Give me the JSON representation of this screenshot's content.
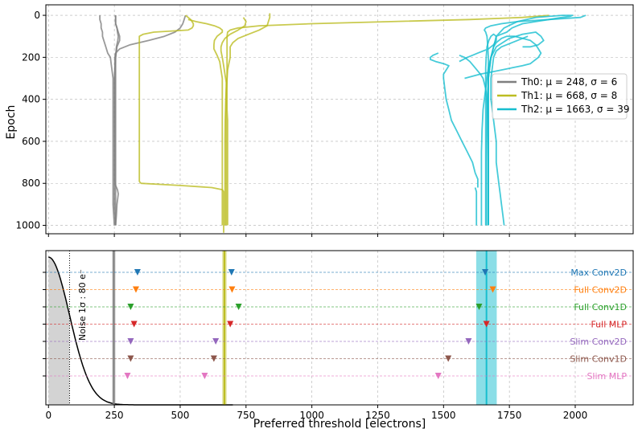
{
  "chart_data": [
    {
      "type": "line",
      "panel": "top",
      "xlabel": "",
      "ylabel": "Epoch",
      "xlim": [
        -10,
        2220
      ],
      "ylim": [
        1040,
        -50
      ],
      "x_ticks": [
        0,
        250,
        500,
        750,
        1000,
        1250,
        1500,
        1750,
        2000
      ],
      "y_ticks": [
        0,
        200,
        400,
        600,
        800,
        1000
      ],
      "y_tick_labels": [
        "0",
        "200",
        "400",
        "600",
        "800",
        "1000"
      ],
      "grid": true,
      "legend_position": "right",
      "legend": [
        {
          "label": "Th0: μ = 248, σ = 6",
          "color": "#7f7f7f"
        },
        {
          "label": "Th1: μ = 668, σ = 8",
          "color": "#bcbd22"
        },
        {
          "label": "Th2: μ = 1663, σ = 39",
          "color": "#17becf"
        }
      ],
      "series": [
        {
          "name": "Th0 run A",
          "group": "Th0",
          "x": [
            195,
            195,
            200,
            200,
            205,
            205,
            210,
            215,
            220,
            225,
            235,
            240,
            245,
            245,
            245,
            245,
            245,
            245,
            245,
            250
          ],
          "y": [
            0,
            20,
            40,
            60,
            80,
            100,
            120,
            140,
            160,
            180,
            200,
            250,
            300,
            400,
            500,
            600,
            700,
            800,
            900,
            1000
          ]
        },
        {
          "name": "Th0 run B",
          "group": "Th0",
          "x": [
            255,
            255,
            255,
            260,
            265,
            270,
            270,
            260,
            255,
            250,
            250,
            250,
            250,
            250,
            250,
            250,
            255
          ],
          "y": [
            0,
            20,
            40,
            60,
            80,
            100,
            120,
            150,
            200,
            300,
            400,
            500,
            600,
            700,
            800,
            900,
            1000
          ]
        },
        {
          "name": "Th0 run C",
          "group": "Th0",
          "x": [
            255,
            255,
            255,
            260,
            262,
            265,
            263,
            258,
            255,
            255,
            255,
            255,
            255,
            255,
            255,
            255,
            255
          ],
          "y": [
            0,
            20,
            40,
            60,
            80,
            100,
            120,
            150,
            200,
            300,
            400,
            500,
            600,
            700,
            800,
            900,
            1000
          ]
        },
        {
          "name": "Th0 run D",
          "group": "Th0",
          "x": [
            520,
            515,
            510,
            500,
            480,
            440,
            380,
            310,
            270,
            255,
            252,
            252,
            252,
            252,
            252,
            252,
            252,
            252,
            252,
            255,
            262,
            265,
            260,
            258,
            255
          ],
          "y": [
            0,
            20,
            40,
            60,
            80,
            100,
            120,
            140,
            160,
            180,
            200,
            250,
            300,
            400,
            500,
            600,
            700,
            750,
            790,
            810,
            830,
            850,
            900,
            950,
            1000
          ]
        },
        {
          "name": "Th1 run A",
          "group": "Th1",
          "x": [
            520,
            530,
            540,
            545,
            550,
            550,
            545,
            530,
            400,
            360,
            345,
            345,
            345,
            345,
            345,
            345,
            345,
            345,
            345,
            345,
            345,
            345,
            345,
            345,
            345,
            350
          ],
          "y": [
            0,
            10,
            20,
            30,
            40,
            50,
            60,
            70,
            80,
            90,
            100,
            150,
            200,
            250,
            300,
            350,
            400,
            450,
            500,
            550,
            600,
            650,
            700,
            750,
            790,
            800
          ]
        },
        {
          "name": "Th1 run B",
          "group": "Th1",
          "x": [
            350,
            500,
            620,
            660,
            665,
            665,
            665,
            665,
            665,
            665,
            665,
            665,
            665,
            665,
            665,
            665
          ],
          "y": [
            800,
            810,
            820,
            830,
            840,
            860,
            880,
            900,
            920,
            940,
            960,
            980,
            1000,
            1020,
            1030,
            1035
          ]
        },
        {
          "name": "Th1 run C",
          "group": "Th1",
          "x": [
            840,
            840,
            835,
            830,
            800,
            760,
            720,
            700,
            690,
            690,
            690,
            685,
            680,
            678,
            675,
            673,
            672,
            671,
            670,
            670,
            670,
            670,
            670,
            670,
            670
          ],
          "y": [
            -10,
            10,
            30,
            50,
            70,
            90,
            110,
            130,
            150,
            175,
            200,
            230,
            260,
            300,
            350,
            400,
            450,
            500,
            600,
            700,
            800,
            850,
            900,
            950,
            1000
          ]
        },
        {
          "name": "Th1 run D",
          "group": "Th1",
          "x": [
            530,
            560,
            600,
            630,
            650,
            660,
            660,
            650,
            640,
            630,
            628,
            628,
            640,
            650,
            655,
            660,
            660,
            660,
            660,
            660,
            660,
            660,
            660,
            660,
            660
          ],
          "y": [
            20,
            30,
            40,
            50,
            60,
            70,
            80,
            90,
            100,
            120,
            140,
            160,
            190,
            220,
            260,
            300,
            350,
            400,
            500,
            600,
            700,
            800,
            900,
            950,
            1000
          ]
        },
        {
          "name": "Th1 run E",
          "group": "Th1",
          "x": [
            740,
            750,
            745,
            720,
            690,
            670,
            660,
            655,
            655,
            660,
            665,
            670,
            675,
            675,
            675,
            675,
            675,
            675,
            675,
            675,
            675,
            675,
            675,
            675,
            675
          ],
          "y": [
            10,
            30,
            50,
            70,
            90,
            110,
            130,
            150,
            170,
            200,
            240,
            280,
            320,
            360,
            400,
            450,
            500,
            600,
            700,
            800,
            850,
            900,
            950,
            980,
            1000
          ]
        },
        {
          "name": "Th1 run F",
          "group": "Th1",
          "x": [
            1900,
            1800,
            1600,
            1300,
            1000,
            800,
            720,
            690,
            680,
            678,
            678,
            678,
            678,
            678,
            678,
            678,
            678,
            680,
            680,
            680,
            680,
            680,
            680,
            680,
            680
          ],
          "y": [
            0,
            10,
            20,
            30,
            40,
            50,
            60,
            70,
            80,
            100,
            150,
            200,
            250,
            300,
            350,
            400,
            450,
            500,
            550,
            600,
            700,
            800,
            900,
            950,
            1000
          ]
        },
        {
          "name": "Th2 run A",
          "group": "Th2",
          "x": [
            1480,
            1460,
            1450,
            1450,
            1470,
            1500,
            1520,
            1510,
            1500,
            1500,
            1505,
            1510,
            1520,
            1530,
            1550,
            1570,
            1590,
            1610,
            1620,
            1630,
            1630,
            1630
          ],
          "y": [
            180,
            190,
            200,
            210,
            220,
            230,
            240,
            260,
            280,
            300,
            350,
            400,
            450,
            500,
            550,
            600,
            650,
            700,
            750,
            780,
            800,
            820
          ]
        },
        {
          "name": "Th2 run B",
          "group": "Th2",
          "x": [
            1620,
            1625,
            1625,
            1625,
            1625,
            1625,
            1625,
            1625,
            1625,
            1625
          ],
          "y": [
            820,
            840,
            860,
            880,
            900,
            920,
            940,
            960,
            980,
            1000
          ]
        },
        {
          "name": "Th2 run C",
          "group": "Th2",
          "x": [
            1800,
            1830,
            1860,
            1880,
            1870,
            1850,
            1800,
            1750,
            1700,
            1680,
            1670,
            1665,
            1660,
            1655,
            1650,
            1648,
            1646,
            1645,
            1644,
            1644,
            1644,
            1644,
            1644,
            1644,
            1644
          ],
          "y": [
            150,
            150,
            140,
            120,
            100,
            80,
            90,
            110,
            150,
            200,
            250,
            300,
            350,
            400,
            450,
            500,
            550,
            600,
            650,
            700,
            750,
            800,
            850,
            900,
            1000
          ]
        },
        {
          "name": "Th2 run D",
          "group": "Th2",
          "x": [
            1700,
            1720,
            1740,
            1750,
            1760,
            1780,
            1800,
            1850,
            1900,
            1950,
            1980,
            1990,
            1950,
            1850,
            1780,
            1730,
            1700,
            1690,
            1680,
            1675,
            1670,
            1668,
            1666,
            1665,
            1664,
            1663,
            1663,
            1663,
            1663,
            1663
          ],
          "y": [
            100,
            90,
            80,
            70,
            60,
            50,
            40,
            30,
            20,
            10,
            5,
            0,
            0,
            10,
            30,
            60,
            100,
            150,
            200,
            250,
            300,
            350,
            400,
            500,
            600,
            700,
            800,
            850,
            900,
            1000
          ]
        },
        {
          "name": "Th2 run E",
          "group": "Th2",
          "x": [
            1820,
            1800,
            1780,
            1760,
            1740,
            1720,
            1700,
            1690,
            1685,
            1680,
            1680,
            1680,
            1690,
            1700,
            1700,
            1710,
            1715,
            1720,
            1725,
            1730
          ],
          "y": [
            100,
            110,
            120,
            130,
            140,
            150,
            170,
            200,
            250,
            300,
            350,
            400,
            500,
            600,
            700,
            800,
            850,
            900,
            950,
            1000
          ]
        },
        {
          "name": "Th2 run F",
          "group": "Th2",
          "x": [
            2040,
            2020,
            1900,
            1780,
            1720,
            1680,
            1660,
            1655,
            1660,
            1665,
            1668,
            1670,
            1670,
            1670,
            1670,
            1670,
            1670,
            1670,
            1670,
            1670,
            1670
          ],
          "y": [
            0,
            10,
            20,
            30,
            40,
            50,
            60,
            70,
            80,
            100,
            150,
            200,
            300,
            400,
            500,
            600,
            700,
            800,
            850,
            900,
            1000
          ]
        },
        {
          "name": "Th2 run G",
          "group": "Th2",
          "x": [
            1560,
            1590,
            1610,
            1630,
            1650,
            1670,
            1690,
            1700,
            1700,
            1690,
            1680,
            1672,
            1665,
            1662,
            1660,
            1660,
            1660,
            1660,
            1660,
            1660,
            1660,
            1660
          ],
          "y": [
            220,
            200,
            190,
            180,
            170,
            160,
            140,
            120,
            100,
            90,
            100,
            120,
            150,
            200,
            250,
            300,
            400,
            500,
            600,
            700,
            800,
            1000
          ]
        },
        {
          "name": "Th2 run H",
          "group": "Th2",
          "x": [
            1580,
            1610,
            1640,
            1680,
            1720,
            1760,
            1800,
            1830,
            1840,
            1850,
            1860,
            1870,
            1860,
            1850,
            1830,
            1800,
            1770,
            1740,
            1720,
            1700,
            1690,
            1680,
            1675,
            1670,
            1670,
            1670,
            1670,
            1670,
            1670
          ],
          "y": [
            300,
            290,
            280,
            270,
            260,
            250,
            240,
            230,
            220,
            210,
            200,
            180,
            160,
            140,
            120,
            110,
            100,
            100,
            110,
            130,
            150,
            200,
            250,
            300,
            400,
            500,
            600,
            700,
            1000
          ]
        },
        {
          "name": "Th2 run I",
          "group": "Th2",
          "x": [
            1560,
            1580,
            1600,
            1620,
            1640,
            1650,
            1660,
            1665,
            1668,
            1670,
            1670,
            1670,
            1670,
            1670
          ],
          "y": [
            190,
            200,
            220,
            250,
            280,
            300,
            350,
            400,
            500,
            600,
            700,
            800,
            900,
            1000
          ]
        }
      ]
    },
    {
      "type": "scatter",
      "panel": "bottom",
      "xlabel": "Preferred threshold [electrons]",
      "xlim": [
        -10,
        2220
      ],
      "x_ticks": [
        0,
        250,
        500,
        750,
        1000,
        1250,
        1500,
        1750,
        2000
      ],
      "x_tick_labels": [
        "0",
        "250",
        "500",
        "750",
        "1000",
        "1250",
        "1500",
        "1750",
        "2000"
      ],
      "grid": true,
      "noise": {
        "sigma": 80,
        "label": "Noise 1σ : 80 e⁻"
      },
      "threshold_lines": [
        {
          "name": "Th0",
          "mu": 248,
          "sigma": 6,
          "color": "#7f7f7f"
        },
        {
          "name": "Th1",
          "mu": 668,
          "sigma": 8,
          "color": "#bcbd22"
        },
        {
          "name": "Th2",
          "mu": 1663,
          "sigma": 39,
          "color": "#17becf"
        }
      ],
      "models": [
        {
          "label": "Max Conv2D",
          "color": "#1f77b4",
          "thresholds": [
            338,
            695,
            1658
          ]
        },
        {
          "label": "Full Conv2D",
          "color": "#ff7f0e",
          "thresholds": [
            332,
            697,
            1687
          ]
        },
        {
          "label": "Full Conv1D",
          "color": "#2ca02c",
          "thresholds": [
            312,
            722,
            1635
          ]
        },
        {
          "label": "Full MLP",
          "color": "#d62728",
          "thresholds": [
            325,
            690,
            1663
          ]
        },
        {
          "label": "Slim Conv2D",
          "color": "#9467bd",
          "thresholds": [
            312,
            635,
            1595
          ]
        },
        {
          "label": "Slim Conv1D",
          "color": "#8c564b",
          "thresholds": [
            312,
            628,
            1518
          ]
        },
        {
          "label": "Slim MLP",
          "color": "#e377c2",
          "thresholds": [
            300,
            593,
            1480
          ]
        }
      ]
    }
  ]
}
